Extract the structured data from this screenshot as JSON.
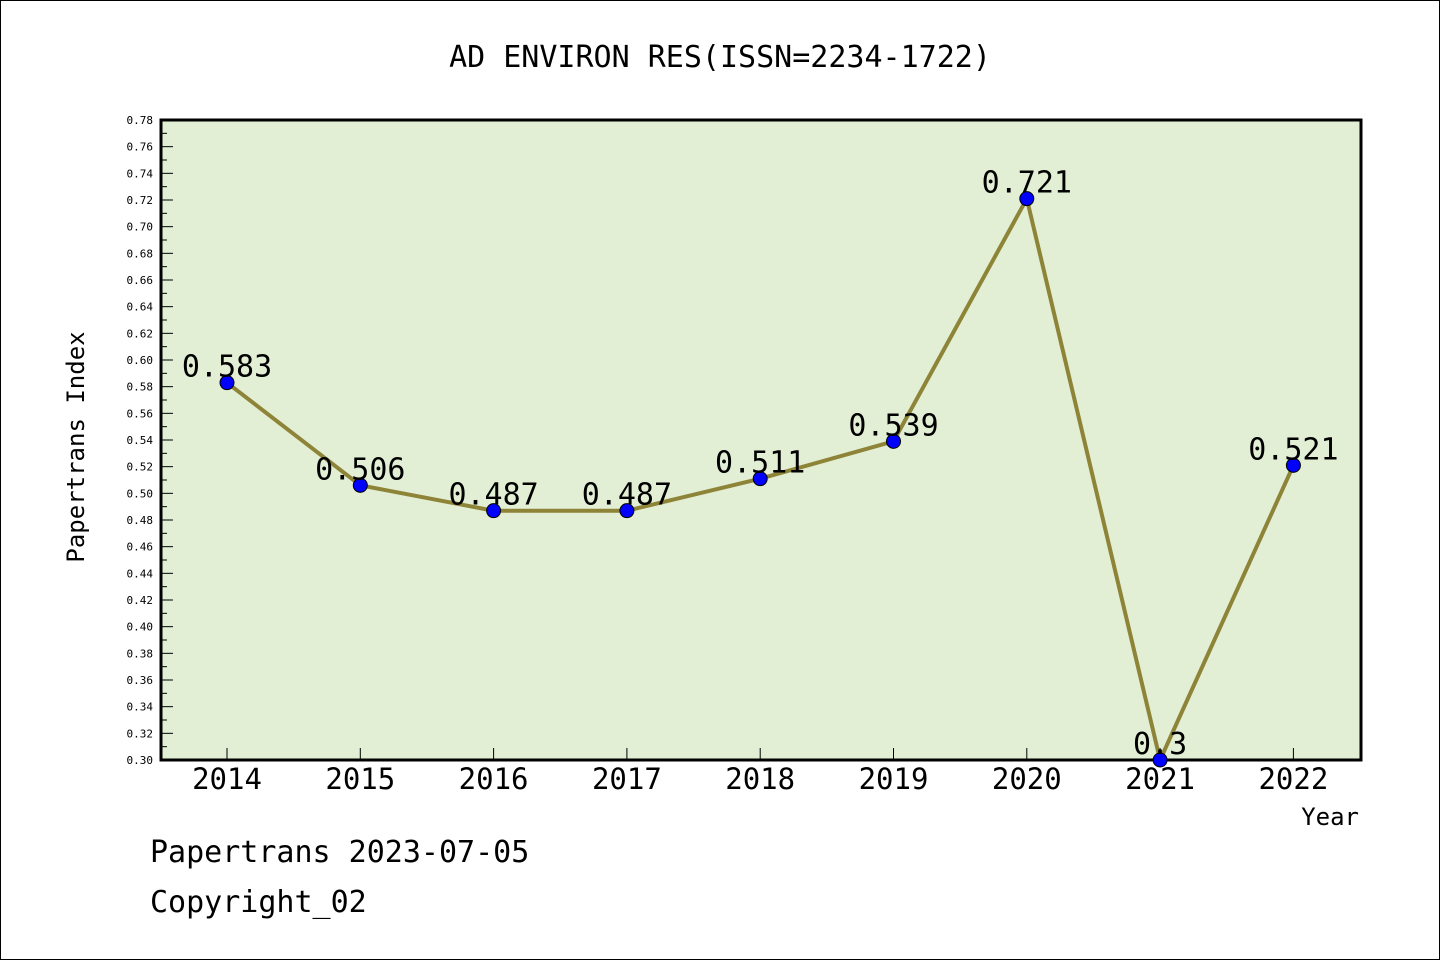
{
  "chart_data": {
    "type": "line",
    "title": "AD ENVIRON RES(ISSN=2234-1722)",
    "xlabel": "Year",
    "ylabel": "Papertrans Index",
    "categories": [
      "2014",
      "2015",
      "2016",
      "2017",
      "2018",
      "2019",
      "2020",
      "2021",
      "2022"
    ],
    "values": [
      0.583,
      0.506,
      0.487,
      0.487,
      0.511,
      0.539,
      0.721,
      0.3,
      0.521
    ],
    "data_labels": [
      "0.583",
      "0.506",
      "0.487",
      "0.487",
      "0.511",
      "0.539",
      "0.721",
      "0.3",
      "0.521"
    ],
    "ylim": [
      0.3,
      0.78
    ],
    "y_ticks": [
      "0.30",
      "0.32",
      "0.34",
      "0.36",
      "0.38",
      "0.40",
      "0.42",
      "0.44",
      "0.46",
      "0.48",
      "0.50",
      "0.52",
      "0.54",
      "0.56",
      "0.58",
      "0.60",
      "0.62",
      "0.64",
      "0.66",
      "0.68",
      "0.70",
      "0.72",
      "0.74",
      "0.76",
      "0.78"
    ],
    "grid": false,
    "colors": {
      "plot_background": "#e2efd5",
      "line": "#8e8438",
      "marker": "#0000ff"
    }
  },
  "footer": {
    "source": "Papertrans 2023-07-05",
    "copyright": "Copyright_02"
  }
}
